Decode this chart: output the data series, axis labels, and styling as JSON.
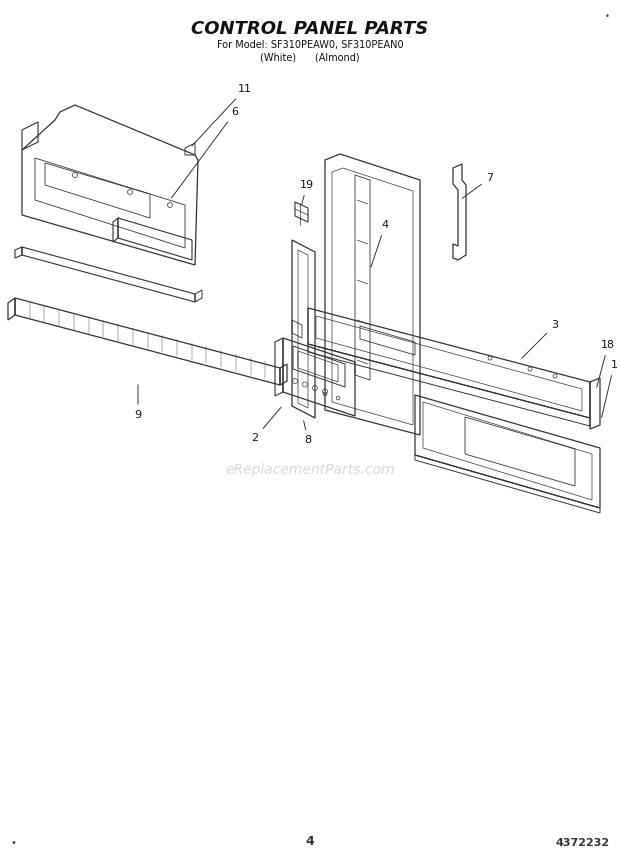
{
  "title_line1": "CONTROL PANEL PARTS",
  "title_line2": "For Model: SF310PEAW0, SF310PEAN0",
  "title_line3": "(White)      (Almond)",
  "bg_color": "#ffffff",
  "line_color": "#333333",
  "watermark": "eReplacementParts.com",
  "page_number": "4",
  "diagram_number": "4372232"
}
